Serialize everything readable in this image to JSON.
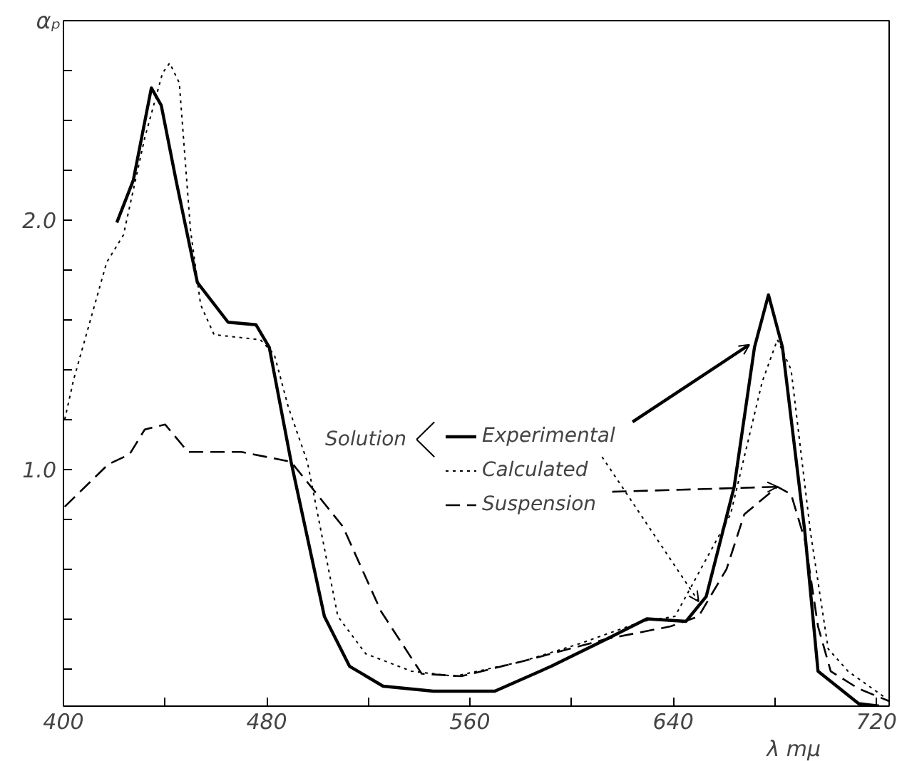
{
  "chart_data": {
    "type": "line",
    "xlabel": "λ mμ",
    "ylabel": "αₚ",
    "annotations": [
      "Solution"
    ],
    "xlim": [
      400,
      725
    ],
    "ylim": [
      0.05,
      2.8
    ],
    "xticks": [
      400,
      {
        "value": 440,
        "label": null
      },
      480,
      {
        "value": 520,
        "label": null
      },
      560,
      {
        "value": 600,
        "label": null
      },
      640,
      {
        "value": 680,
        "label": null
      },
      720
    ],
    "yticks": [
      {
        "value": 0.2,
        "label": null
      },
      {
        "value": 0.4,
        "label": null
      },
      {
        "value": 0.6,
        "label": null
      },
      {
        "value": 0.8,
        "label": null
      },
      {
        "value": 1.0,
        "label": "1.0"
      },
      {
        "value": 1.2,
        "label": null
      },
      {
        "value": 1.4,
        "label": null
      },
      {
        "value": 1.6,
        "label": null
      },
      {
        "value": 1.8,
        "label": null
      },
      {
        "value": 2.0,
        "label": "2.0"
      },
      {
        "value": 2.2,
        "label": null
      },
      {
        "value": 2.4,
        "label": null
      },
      {
        "value": 2.6,
        "label": null
      }
    ],
    "grid": false,
    "legend": "center",
    "series": [
      {
        "name": "Experimental",
        "color": "#000000",
        "line_style": "solid",
        "x": [
          421,
          427.5,
          434.6,
          438.5,
          444.5,
          452.7,
          464.8,
          475.8,
          481,
          489.6,
          502.7,
          512.6,
          525.8,
          545.6,
          569.8,
          592,
          614,
          629.6,
          645,
          653,
          664,
          672,
          677.5,
          683,
          691.8,
          697,
          713,
          721
        ],
        "values": [
          1.99,
          2.16,
          2.53,
          2.46,
          2.15,
          1.75,
          1.59,
          1.58,
          1.49,
          1.03,
          0.41,
          0.21,
          0.13,
          0.11,
          0.11,
          0.21,
          0.32,
          0.4,
          0.39,
          0.49,
          0.93,
          1.49,
          1.7,
          1.49,
          0.75,
          0.19,
          0.06,
          0.05
        ]
      },
      {
        "name": "Calculated",
        "color": "#000000",
        "line_style": "dotted",
        "x": [
          400.5,
          404,
          417,
          423.6,
          432,
          439,
          441.8,
          445.6,
          450,
          454,
          459.3,
          477.5,
          483,
          488.5,
          496,
          508,
          519,
          537,
          554,
          580.8,
          603,
          614,
          628,
          640.7,
          653,
          662.6,
          675,
          681,
          686.4,
          694,
          701,
          708.8,
          724
        ],
        "values": [
          1.2,
          1.36,
          1.83,
          1.94,
          2.33,
          2.59,
          2.63,
          2.55,
          1.96,
          1.66,
          1.54,
          1.52,
          1.46,
          1.25,
          1.03,
          0.41,
          0.26,
          0.19,
          0.17,
          0.23,
          0.3,
          0.34,
          0.39,
          0.41,
          0.64,
          0.82,
          1.35,
          1.52,
          1.4,
          0.75,
          0.28,
          0.19,
          0.08
        ]
      },
      {
        "name": "Suspension",
        "color": "#000000",
        "line_style": "dashed",
        "x": [
          400.5,
          417.6,
          426,
          432,
          440,
          449,
          470,
          489.6,
          510,
          525,
          541,
          556.6,
          580.8,
          614,
          639,
          650,
          661,
          668,
          681,
          686.4,
          692,
          697,
          702,
          713,
          725
        ],
        "values": [
          0.85,
          1.02,
          1.06,
          1.16,
          1.18,
          1.07,
          1.07,
          1.03,
          0.77,
          0.43,
          0.18,
          0.17,
          0.23,
          0.32,
          0.37,
          0.41,
          0.6,
          0.82,
          0.93,
          0.9,
          0.71,
          0.37,
          0.19,
          0.12,
          0.07
        ]
      }
    ]
  }
}
